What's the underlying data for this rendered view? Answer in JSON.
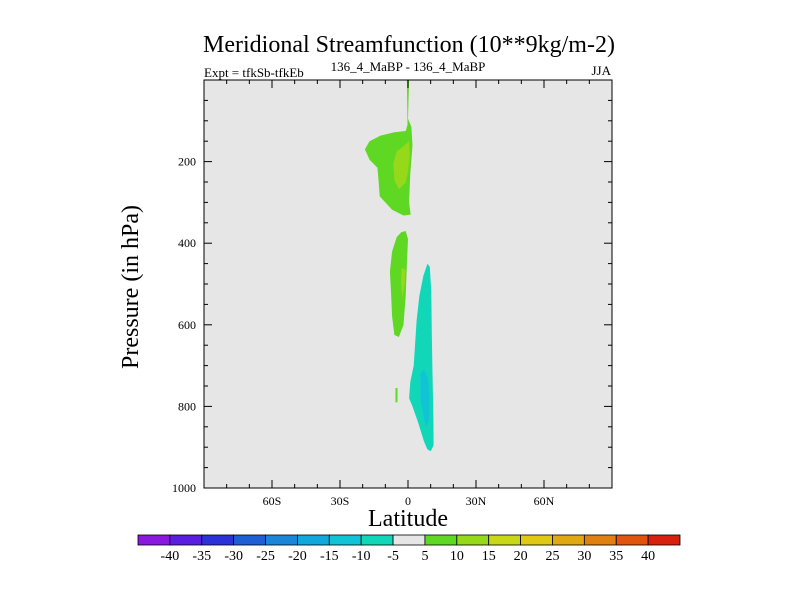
{
  "chart_data": {
    "type": "contour",
    "title": "Meridional Streamfunction (10**9kg/m-2)",
    "left_string": "Expt = tfkSb-tfkEb",
    "center_string": "136_4_MaBP - 136_4_MaBP",
    "right_string": "JJA",
    "xlabel": "Latitude",
    "ylabel": "Pressure (in hPa)",
    "x_range": [
      -90,
      90
    ],
    "y_range": [
      0,
      1000
    ],
    "x_ticks": [
      -60,
      -30,
      0,
      30,
      60
    ],
    "x_tick_labels": [
      "60S",
      "30S",
      "0",
      "30N",
      "60N"
    ],
    "y_ticks": [
      200,
      400,
      600,
      800,
      1000
    ],
    "y_tick_labels": [
      "200",
      "400",
      "600",
      "800",
      "1000"
    ],
    "colorbar": {
      "levels": [
        "-40",
        "-35",
        "-30",
        "-25",
        "-20",
        "-15",
        "-10",
        "-5",
        "5",
        "10",
        "15",
        "20",
        "25",
        "30",
        "35",
        "40"
      ],
      "colors": [
        "#8a19e0",
        "#5a1ee0",
        "#2a32d8",
        "#1e5fd6",
        "#1a86da",
        "#11a8dc",
        "#10c4d6",
        "#12d6b8",
        "#e6e6e6",
        "#5fd824",
        "#96d81a",
        "#c8d816",
        "#e0c814",
        "#e0a812",
        "#e08010",
        "#e0540e",
        "#d8200e"
      ]
    },
    "contour_regions": [
      {
        "name": "upper-positive-lobe",
        "level": "5 to 10",
        "color": "#5fd824",
        "lat_range": [
          -12,
          1
        ],
        "pressure_range": [
          0,
          330
        ]
      },
      {
        "name": "upper-positive-core",
        "level": "10 to 15",
        "color": "#96d81a",
        "lat_range": [
          -5,
          1
        ],
        "pressure_range": [
          150,
          270
        ]
      },
      {
        "name": "mid-positive-lobe",
        "level": "5 to 10",
        "color": "#5fd824",
        "lat_range": [
          -7,
          0
        ],
        "pressure_range": [
          370,
          630
        ]
      },
      {
        "name": "mid-positive-core",
        "level": "10 to 15",
        "color": "#96d81a",
        "lat_range": [
          -3,
          -1
        ],
        "pressure_range": [
          460,
          540
        ]
      },
      {
        "name": "lower-negative-lobe",
        "level": "-10 to -5",
        "color": "#12d6b8",
        "lat_range": [
          0,
          11
        ],
        "pressure_range": [
          450,
          910
        ]
      },
      {
        "name": "lower-negative-core",
        "level": "-15 to -10",
        "color": "#10c4d6",
        "lat_range": [
          5,
          10
        ],
        "pressure_range": [
          720,
          850
        ]
      }
    ]
  }
}
